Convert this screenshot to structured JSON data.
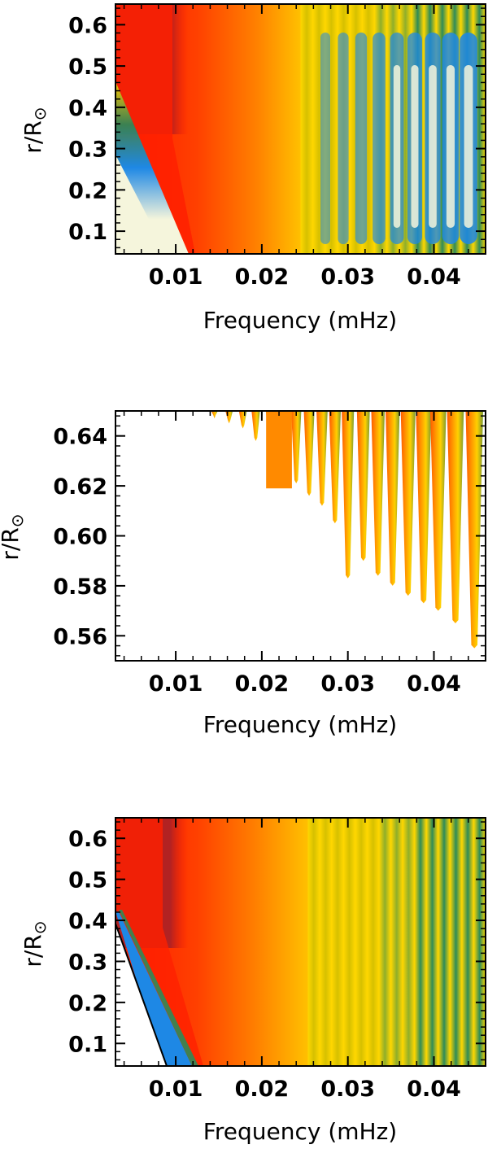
{
  "chart_data": [
    {
      "type": "heatmap",
      "title": "",
      "xlabel": "Frequency (mHz)",
      "ylabel_main": "r/R",
      "ylabel_symbol": "⊙",
      "xlim": [
        0.003,
        0.046
      ],
      "ylim": [
        0.045,
        0.65
      ],
      "xticks": [
        0.01,
        0.02,
        0.03,
        0.04
      ],
      "xtick_labels": [
        "0.01",
        "0.02",
        "0.03",
        "0.04"
      ],
      "yticks": [
        0.1,
        0.2,
        0.3,
        0.4,
        0.5,
        0.6
      ],
      "ytick_labels": [
        "0.1",
        "0.2",
        "0.3",
        "0.4",
        "0.5",
        "0.6"
      ],
      "colors": [
        "#b22222",
        "#ff1a00",
        "#ff8000",
        "#ffd700",
        "#2e8b57",
        "#1e88e5",
        "#f5f5dc"
      ]
    },
    {
      "type": "heatmap",
      "title": "",
      "xlabel": "Frequency (mHz)",
      "ylabel_main": "r/R",
      "ylabel_symbol": "⊙",
      "xlim": [
        0.003,
        0.046
      ],
      "ylim": [
        0.55,
        0.65
      ],
      "xticks": [
        0.01,
        0.02,
        0.03,
        0.04
      ],
      "xtick_labels": [
        "0.01",
        "0.02",
        "0.03",
        "0.04"
      ],
      "yticks": [
        0.56,
        0.58,
        0.6,
        0.62,
        0.64
      ],
      "ytick_labels": [
        "0.56",
        "0.58",
        "0.60",
        "0.62",
        "0.64"
      ],
      "colors": [
        "#ff4500",
        "#ff8c00",
        "#ffd700",
        "#6b8e23"
      ]
    },
    {
      "type": "heatmap",
      "title": "",
      "xlabel": "Frequency (mHz)",
      "ylabel_main": "r/R",
      "ylabel_symbol": "⊙",
      "xlim": [
        0.003,
        0.046
      ],
      "ylim": [
        0.045,
        0.65
      ],
      "xticks": [
        0.01,
        0.02,
        0.03,
        0.04
      ],
      "xtick_labels": [
        "0.01",
        "0.02",
        "0.03",
        "0.04"
      ],
      "yticks": [
        0.1,
        0.2,
        0.3,
        0.4,
        0.5,
        0.6
      ],
      "ytick_labels": [
        "0.1",
        "0.2",
        "0.3",
        "0.4",
        "0.5",
        "0.6"
      ],
      "colors": [
        "#b22222",
        "#ff1a00",
        "#ff8000",
        "#ffd700",
        "#2e8b57",
        "#1e88e5",
        "#ffffff"
      ]
    }
  ]
}
